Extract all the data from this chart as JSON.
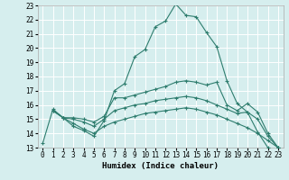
{
  "xlabel": "Humidex (Indice chaleur)",
  "xlim": [
    -0.5,
    23.5
  ],
  "ylim": [
    13,
    23
  ],
  "xticks": [
    0,
    1,
    2,
    3,
    4,
    5,
    6,
    7,
    8,
    9,
    10,
    11,
    12,
    13,
    14,
    15,
    16,
    17,
    18,
    19,
    20,
    21,
    22,
    23
  ],
  "yticks": [
    13,
    14,
    15,
    16,
    17,
    18,
    19,
    20,
    21,
    22,
    23
  ],
  "bg_color": "#d6eeee",
  "grid_color": "#ffffff",
  "line_color": "#2e7d6e",
  "lines": [
    {
      "x": [
        0,
        1,
        2,
        3,
        4,
        5,
        6,
        7,
        8,
        9,
        10,
        11,
        12,
        13,
        14,
        15,
        16,
        17,
        18,
        19,
        20,
        21,
        22,
        23
      ],
      "y": [
        13.3,
        15.7,
        15.1,
        14.5,
        14.2,
        13.8,
        14.9,
        17.0,
        17.5,
        19.4,
        19.9,
        21.5,
        21.9,
        23.1,
        22.3,
        22.2,
        21.1,
        20.1,
        17.7,
        16.1,
        15.5,
        14.1,
        13.0,
        null
      ]
    },
    {
      "x": [
        1,
        2,
        3,
        4,
        5,
        6,
        7,
        8,
        9,
        10,
        11,
        12,
        13,
        14,
        15,
        16,
        17,
        18,
        19,
        20,
        21,
        22,
        23
      ],
      "y": [
        15.6,
        15.1,
        15.1,
        15.0,
        14.8,
        15.2,
        16.5,
        16.5,
        16.7,
        16.9,
        17.1,
        17.3,
        17.6,
        17.7,
        17.6,
        17.4,
        17.6,
        16.0,
        15.6,
        16.1,
        15.5,
        14.0,
        13.0
      ]
    },
    {
      "x": [
        1,
        2,
        3,
        4,
        5,
        6,
        7,
        8,
        9,
        10,
        11,
        12,
        13,
        14,
        15,
        16,
        17,
        18,
        19,
        20,
        21,
        22,
        23
      ],
      "y": [
        15.6,
        15.1,
        15.0,
        14.8,
        14.5,
        15.0,
        15.6,
        15.8,
        16.0,
        16.1,
        16.3,
        16.4,
        16.5,
        16.6,
        16.5,
        16.3,
        16.0,
        15.7,
        15.4,
        15.5,
        15.0,
        13.8,
        13.0
      ]
    },
    {
      "x": [
        1,
        2,
        3,
        4,
        5,
        6,
        7,
        8,
        9,
        10,
        11,
        12,
        13,
        14,
        15,
        16,
        17,
        18,
        19,
        20,
        21,
        22,
        23
      ],
      "y": [
        15.6,
        15.1,
        14.7,
        14.3,
        14.0,
        14.5,
        14.8,
        15.0,
        15.2,
        15.4,
        15.5,
        15.6,
        15.7,
        15.8,
        15.7,
        15.5,
        15.3,
        15.0,
        14.7,
        14.4,
        14.0,
        13.5,
        13.0
      ]
    }
  ],
  "tick_fontsize": 5.5,
  "label_fontsize": 6.5
}
